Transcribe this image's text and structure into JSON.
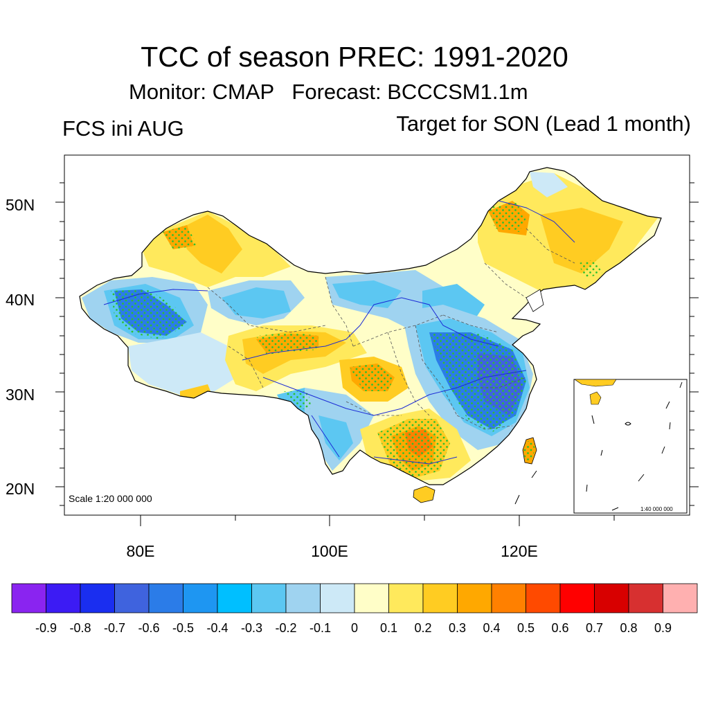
{
  "title": "TCC of season PREC: 1991-2020",
  "subtitle": "Monitor: CMAP   Forecast: BCCCSM1.1m",
  "left_label": "FCS ini AUG",
  "right_label": "Target for SON (Lead 1 month)",
  "scale_main": "Scale 1:20 000 000",
  "scale_inset": "1:40 000 000",
  "lat_labels": [
    "50N",
    "40N",
    "30N",
    "20N"
  ],
  "lon_labels": [
    "80E",
    "100E",
    "120E"
  ],
  "colorbar": {
    "labels": [
      "-0.9",
      "-0.8",
      "-0.7",
      "-0.6",
      "-0.5",
      "-0.4",
      "-0.3",
      "-0.2",
      "-0.1",
      "0",
      "0.1",
      "0.2",
      "0.3",
      "0.4",
      "0.5",
      "0.6",
      "0.7",
      "0.8",
      "0.9"
    ],
    "colors": [
      "#8a24f0",
      "#3c1bf4",
      "#1a2ef0",
      "#3f63de",
      "#2b7ce8",
      "#1e96f2",
      "#00bfff",
      "#5cc7f2",
      "#9fd3f0",
      "#cde9f7",
      "#fffec8",
      "#ffe95c",
      "#ffcc22",
      "#ffa800",
      "#ff8000",
      "#ff4a00",
      "#ff0000",
      "#d80000",
      "#d73030",
      "#ffb0b0"
    ]
  },
  "colors": {
    "stipple": "#2fbf2f",
    "frame": "#000000",
    "river": "#1b2bd6",
    "border": "#000000"
  }
}
